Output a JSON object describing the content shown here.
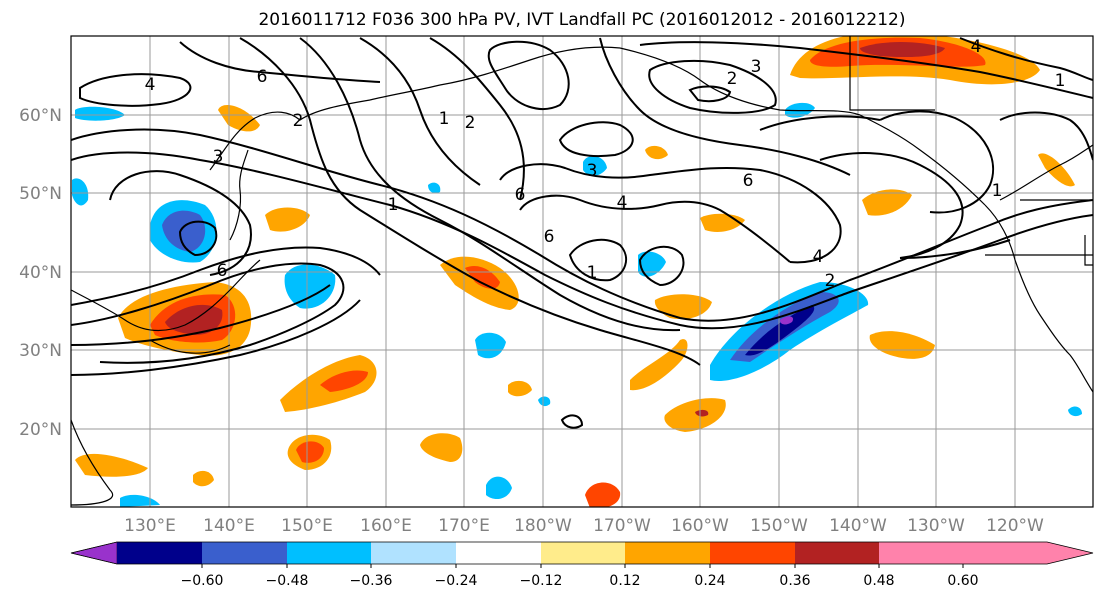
{
  "title": "2016011712 F036 300 hPa PV, IVT Landfall PC (2016012012 - 2016012212)",
  "lon_ticks": [
    "130°E",
    "140°E",
    "150°E",
    "160°E",
    "170°E",
    "180°W",
    "170°W",
    "160°W",
    "150°W",
    "140°W",
    "130°W",
    "120°W"
  ],
  "lat_ticks": [
    "60°N",
    "50°N",
    "40°N",
    "30°N",
    "20°N"
  ],
  "colorbar": {
    "ticks": [
      "−0.60",
      "−0.48",
      "−0.36",
      "−0.24",
      "−0.12",
      "0.12",
      "0.24",
      "0.36",
      "0.48",
      "0.60"
    ],
    "colors": [
      "#9932cc",
      "#00008b",
      "#3a5fcd",
      "#00bfff",
      "#b0e2ff",
      "#ffffff",
      "#ffec8b",
      "#ffa500",
      "#ff4500",
      "#b22222",
      "#ff82ab"
    ]
  },
  "contour_labels": [
    "4",
    "6",
    "2",
    "3",
    "1",
    "2",
    "1",
    "4",
    "3",
    "6",
    "6",
    "6",
    "4",
    "6",
    "1",
    "2",
    "1",
    "4",
    "2",
    "3",
    "1"
  ]
}
